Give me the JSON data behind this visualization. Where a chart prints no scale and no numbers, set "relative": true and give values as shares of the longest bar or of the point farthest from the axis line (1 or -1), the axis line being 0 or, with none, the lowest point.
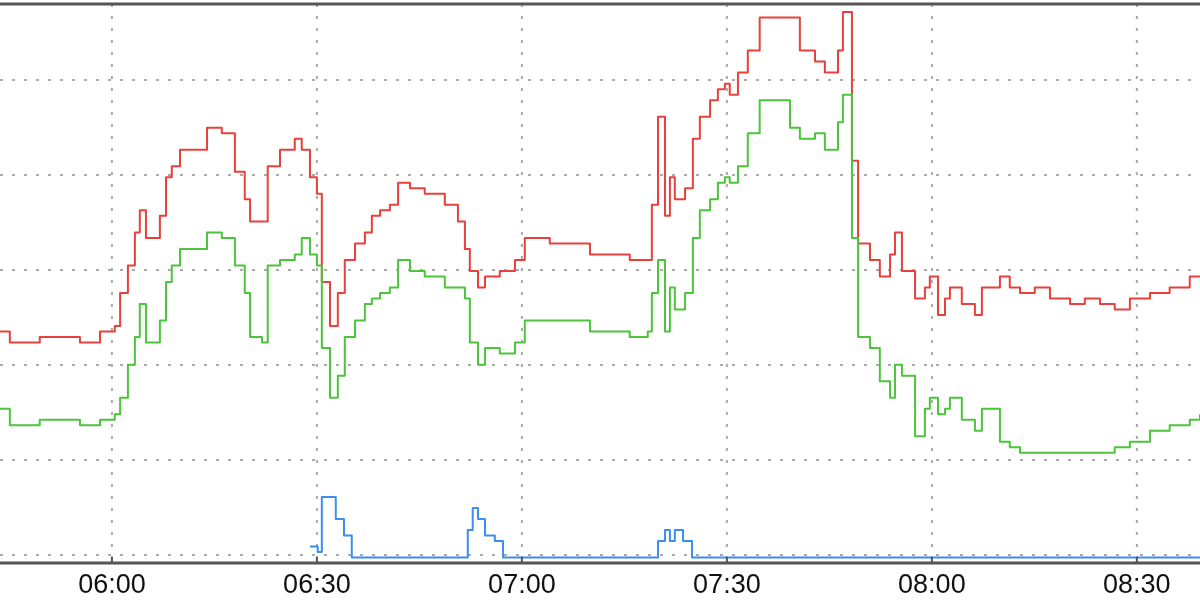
{
  "chart_data": {
    "type": "step",
    "relative": true,
    "grid": true,
    "line_style": "solid",
    "marker": "none",
    "xlim": [
      5.727,
      8.654
    ],
    "xticks": [
      {
        "value": 6,
        "label": "06:00"
      },
      {
        "value": 6.5,
        "label": "06:30"
      },
      {
        "value": 7,
        "label": "07:00"
      },
      {
        "value": 7.5,
        "label": "07:30"
      },
      {
        "value": 8,
        "label": "08:00"
      },
      {
        "value": 8.5,
        "label": "08:30"
      }
    ],
    "x": [
      5.727,
      5.751,
      5.824,
      5.922,
      5.971,
      6.007,
      6.02,
      6.039,
      6.056,
      6.068,
      6.083,
      6.117,
      6.132,
      6.146,
      6.166,
      6.202,
      6.232,
      6.268,
      6.3,
      6.324,
      6.337,
      6.366,
      6.38,
      6.41,
      6.446,
      6.463,
      6.483,
      6.5,
      6.512,
      6.532,
      6.551,
      6.568,
      6.593,
      6.617,
      6.634,
      6.654,
      6.678,
      6.698,
      6.727,
      6.763,
      6.812,
      6.844,
      6.861,
      6.873,
      6.893,
      6.91,
      6.946,
      6.983,
      7.007,
      7.032,
      7.068,
      7.117,
      7.166,
      7.215,
      7.263,
      7.307,
      7.317,
      7.332,
      7.349,
      7.361,
      7.373,
      7.398,
      7.417,
      7.434,
      7.459,
      7.478,
      7.495,
      7.507,
      7.527,
      7.551,
      7.58,
      7.654,
      7.678,
      7.715,
      7.739,
      7.771,
      7.783,
      7.8,
      7.805,
      7.82,
      7.849,
      7.873,
      7.898,
      7.91,
      7.927,
      7.959,
      7.983,
      7.995,
      8.015,
      8.032,
      8.044,
      8.073,
      8.105,
      8.122,
      8.166,
      8.19,
      8.215,
      8.251,
      8.288,
      8.337,
      8.373,
      8.41,
      8.446,
      8.483,
      8.532,
      8.58,
      8.629,
      8.654
    ],
    "series": [
      {
        "color": "#e8413c",
        "values": [
          0.42,
          0.4,
          0.41,
          0.4,
          0.42,
          0.43,
          0.49,
          0.54,
          0.6,
          0.64,
          0.59,
          0.63,
          0.7,
          0.72,
          0.75,
          0.75,
          0.79,
          0.78,
          0.71,
          0.66,
          0.62,
          0.62,
          0.72,
          0.75,
          0.77,
          0.75,
          0.7,
          0.67,
          0.51,
          0.43,
          0.49,
          0.55,
          0.58,
          0.6,
          0.63,
          0.64,
          0.65,
          0.69,
          0.68,
          0.67,
          0.65,
          0.62,
          0.57,
          0.53,
          0.5,
          0.52,
          0.53,
          0.55,
          0.59,
          0.59,
          0.58,
          0.58,
          0.56,
          0.56,
          0.55,
          0.55,
          0.65,
          0.81,
          0.63,
          0.7,
          0.66,
          0.68,
          0.77,
          0.81,
          0.84,
          0.86,
          0.87,
          0.85,
          0.89,
          0.93,
          0.99,
          0.99,
          0.93,
          0.91,
          0.89,
          0.93,
          1,
          1,
          0.73,
          0.58,
          0.55,
          0.52,
          0.56,
          0.6,
          0.53,
          0.48,
          0.5,
          0.52,
          0.45,
          0.48,
          0.5,
          0.47,
          0.45,
          0.5,
          0.52,
          0.5,
          0.49,
          0.5,
          0.48,
          0.47,
          0.48,
          0.47,
          0.46,
          0.48,
          0.49,
          0.5,
          0.52,
          0.52
        ]
      },
      {
        "color": "#4cc43c",
        "values": [
          0.28,
          0.25,
          0.26,
          0.25,
          0.26,
          0.27,
          0.3,
          0.36,
          0.41,
          0.47,
          0.4,
          0.44,
          0.51,
          0.54,
          0.57,
          0.57,
          0.6,
          0.59,
          0.54,
          0.49,
          0.41,
          0.4,
          0.54,
          0.55,
          0.56,
          0.59,
          0.56,
          0.54,
          0.39,
          0.3,
          0.34,
          0.41,
          0.44,
          0.47,
          0.48,
          0.49,
          0.5,
          0.55,
          0.53,
          0.52,
          0.5,
          0.5,
          0.48,
          0.4,
          0.36,
          0.39,
          0.38,
          0.4,
          0.44,
          0.44,
          0.44,
          0.44,
          0.42,
          0.42,
          0.41,
          0.42,
          0.49,
          0.55,
          0.42,
          0.5,
          0.46,
          0.49,
          0.59,
          0.64,
          0.66,
          0.69,
          0.7,
          0.69,
          0.72,
          0.78,
          0.84,
          0.79,
          0.77,
          0.78,
          0.75,
          0.8,
          0.85,
          0.85,
          0.59,
          0.41,
          0.39,
          0.33,
          0.3,
          0.36,
          0.34,
          0.23,
          0.28,
          0.3,
          0.27,
          0.28,
          0.3,
          0.26,
          0.24,
          0.28,
          0.22,
          0.21,
          0.2,
          0.2,
          0.2,
          0.2,
          0.2,
          0.2,
          0.21,
          0.22,
          0.24,
          0.25,
          0.26,
          0.27
        ]
      },
      {
        "color": "#3d8ef0",
        "x": [
          6.483,
          6.502,
          6.512,
          6.546,
          6.566,
          6.585,
          6.861,
          6.868,
          6.88,
          6.893,
          6.91,
          6.934,
          6.954,
          7.322,
          7.332,
          7.349,
          7.361,
          7.373,
          7.393,
          7.415,
          8.654
        ],
        "values": [
          0.03,
          0.02,
          0.12,
          0.08,
          0.05,
          0.01,
          0.01,
          0.06,
          0.1,
          0.08,
          0.05,
          0.04,
          0.01,
          0.01,
          0.04,
          0.06,
          0.04,
          0.06,
          0.04,
          0.01,
          0.01
        ]
      }
    ]
  }
}
